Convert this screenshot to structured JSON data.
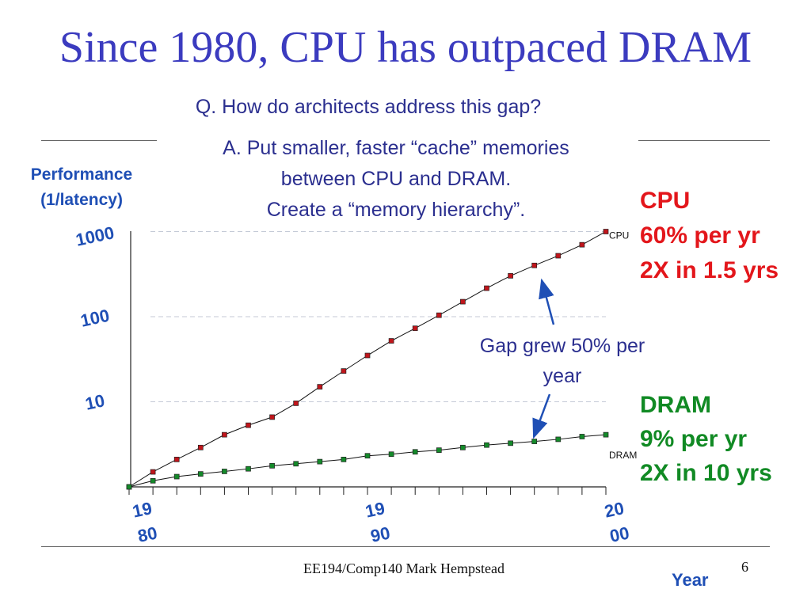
{
  "slide": {
    "title": "Since 1980, CPU has outpaced DRAM",
    "question": "Q. How do architects address this gap?",
    "answer_lines": [
      "A. Put smaller, faster “cache” memories",
      "between CPU and DRAM.",
      "Create a “memory hierarchy”."
    ],
    "footer": "EE194/Comp140 Mark Hempstead",
    "page_number": "6"
  },
  "annotations": {
    "cpu": {
      "title": "CPU",
      "line1": "60% per yr",
      "line2": "2X in 1.5 yrs",
      "color": "#e3161b"
    },
    "dram": {
      "title": "DRAM",
      "line1": "9% per yr",
      "line2": "2X in 10 yrs",
      "color": "#118a24"
    },
    "gap_lines": [
      "Gap grew 50% per",
      "year"
    ]
  },
  "chart_data": {
    "type": "line",
    "yscale": "log",
    "ylabel_lines": [
      "Performance",
      "(1/latency)"
    ],
    "xlabel": "Year",
    "ylim": [
      1,
      1000
    ],
    "xlim": [
      1980,
      2000
    ],
    "yticks": [
      {
        "value": 1000,
        "label": "1000"
      },
      {
        "value": 100,
        "label": "100"
      },
      {
        "value": 10,
        "label": "10"
      }
    ],
    "xticks": [
      {
        "value": 1980,
        "lines": [
          "19",
          "80"
        ]
      },
      {
        "value": 1990,
        "lines": [
          "19",
          "90"
        ]
      },
      {
        "value": 2000,
        "lines": [
          "20",
          "00"
        ]
      }
    ],
    "gridlines": "dashed",
    "x": [
      1980,
      1981,
      1982,
      1983,
      1984,
      1985,
      1986,
      1987,
      1988,
      1989,
      1990,
      1991,
      1992,
      1993,
      1994,
      1995,
      1996,
      1997,
      1998,
      1999,
      2000
    ],
    "series": [
      {
        "name": "CPU",
        "color": "#c0151b",
        "values": [
          1,
          1.5,
          2.1,
          2.9,
          4.1,
          5.3,
          6.6,
          9.6,
          15,
          23,
          35,
          52,
          73,
          104,
          150,
          216,
          302,
          400,
          520,
          700,
          1000
        ]
      },
      {
        "name": "DRAM",
        "color": "#148a2a",
        "values": [
          1,
          1.18,
          1.32,
          1.42,
          1.52,
          1.63,
          1.77,
          1.87,
          1.98,
          2.1,
          2.32,
          2.42,
          2.58,
          2.7,
          2.9,
          3.1,
          3.26,
          3.42,
          3.62,
          3.9,
          4.1
        ]
      }
    ]
  }
}
